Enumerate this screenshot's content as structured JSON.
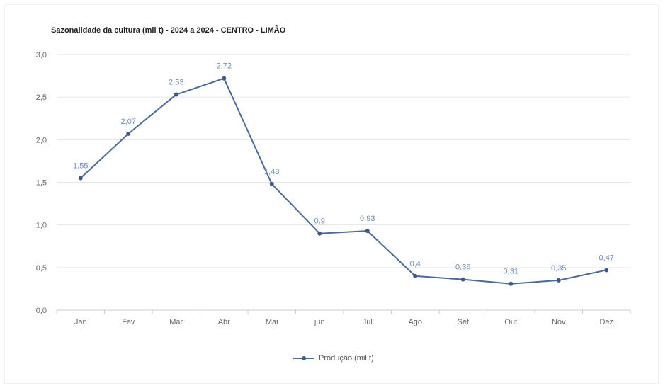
{
  "chart_data": {
    "type": "line",
    "title": "Sazonalidade da cultura (mil t) - 2024 a 2024 - CENTRO - LIMÃO",
    "categories": [
      "Jan",
      "Fev",
      "Mar",
      "Abr",
      "Mai",
      "jun",
      "Jul",
      "Ago",
      "Set",
      "Out",
      "Nov",
      "Dez"
    ],
    "series": [
      {
        "name": "Produção (mil t)",
        "values": [
          1.55,
          2.07,
          2.53,
          2.72,
          1.48,
          0.9,
          0.93,
          0.4,
          0.36,
          0.31,
          0.35,
          0.47
        ],
        "labels": [
          "1,55",
          "2,07",
          "2,53",
          "2,72",
          "1,48",
          "0,9",
          "0,93",
          "0,4",
          "0,36",
          "0,31",
          "0,35",
          "0,47"
        ]
      }
    ],
    "ylim": [
      0,
      3
    ],
    "yticks": [
      0,
      0.5,
      1,
      1.5,
      2,
      2.5,
      3
    ],
    "ytick_labels": [
      "0,0",
      "0,5",
      "1,0",
      "1,5",
      "2,0",
      "2,5",
      "3,0"
    ],
    "grid": true,
    "legend_position": "bottom-center",
    "colors": {
      "line": "#4a6a9a",
      "marker": "#3d5a8a",
      "data_label": "#6f8fbf",
      "grid": "#e6e6e6",
      "axis": "#cccccc",
      "tick_label": "#666666"
    }
  }
}
